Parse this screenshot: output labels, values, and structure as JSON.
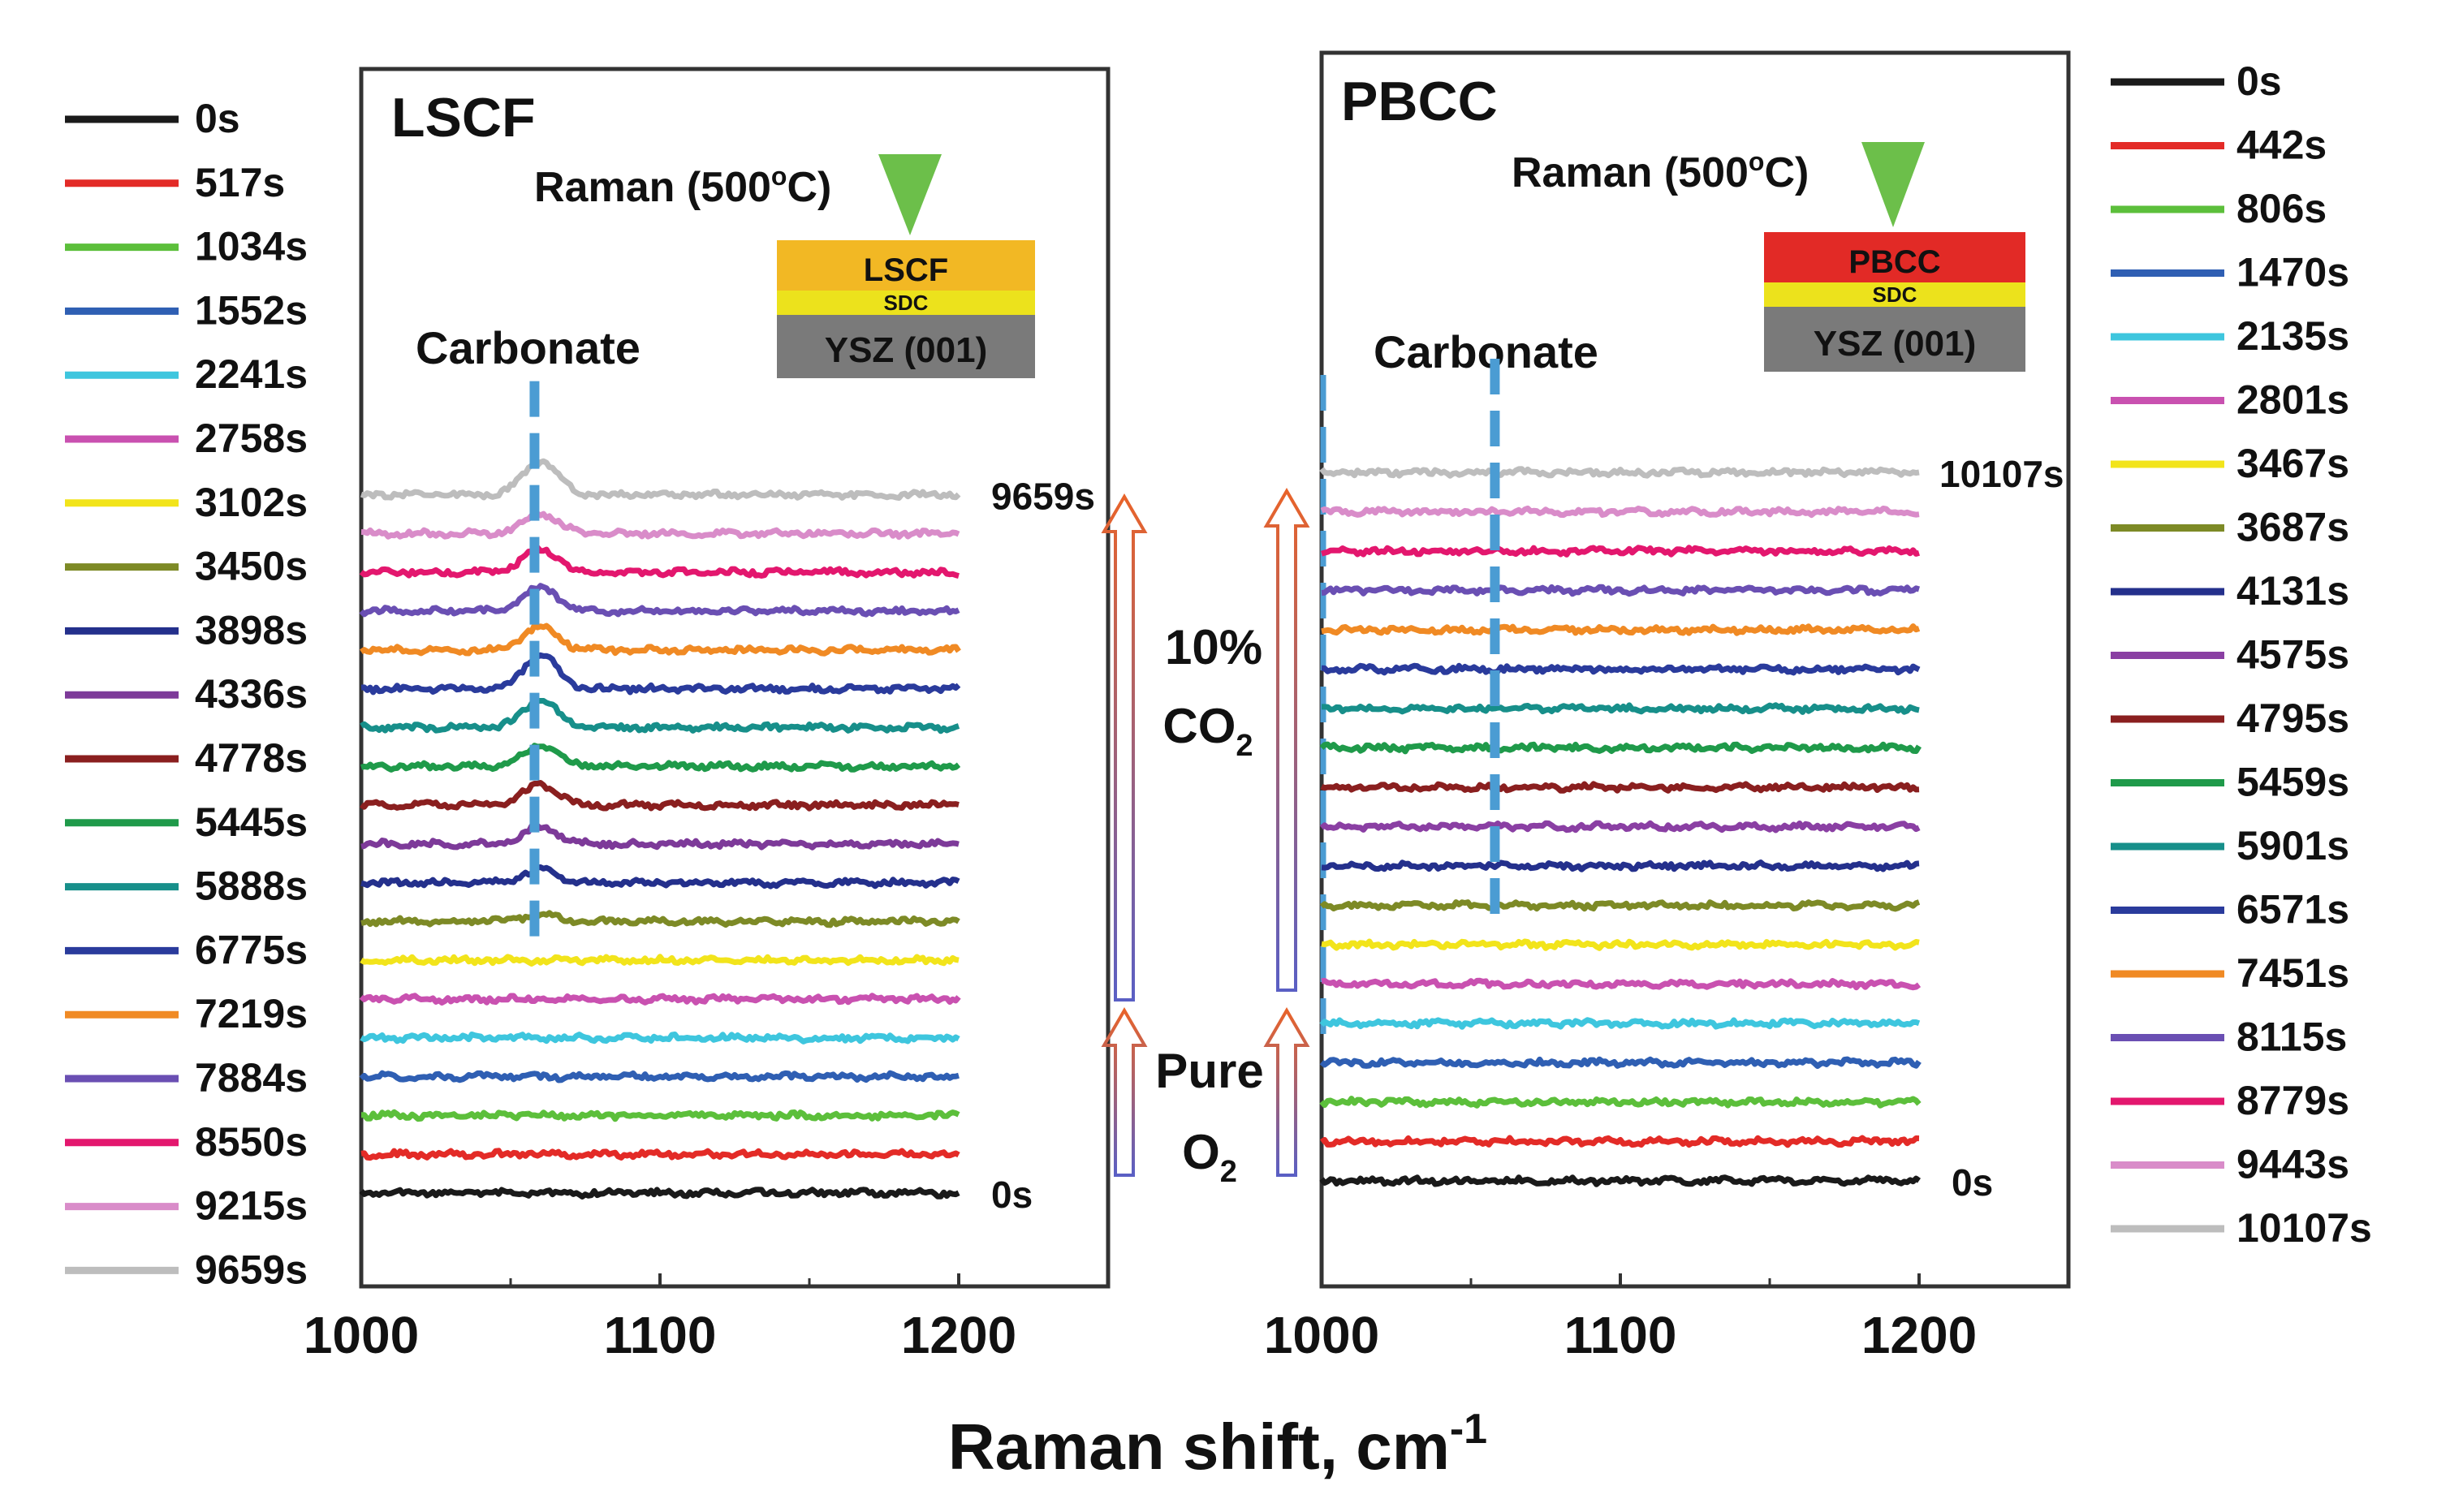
{
  "figure": {
    "xlabel": "Raman shift, cm",
    "xlabel_superscript": "-1"
  },
  "annotations": {
    "co2_line1": "10%",
    "co2_line2": "CO",
    "co2_subscript": "2",
    "o2_line1": "Pure",
    "o2_line2": "O",
    "o2_subscript": "2",
    "raman_prefix": "Raman (500",
    "raman_degree": "o",
    "raman_suffix": "C)",
    "carbonate": "Carbonate"
  },
  "colors": {
    "carbonate_marker": "#4b9cd3",
    "arrow_top": "#e8632a",
    "arrow_bottom": "#5a5fc4",
    "beam": "#6cbf4a",
    "sdc": "#ece21c",
    "ysz": "#7a7a7a",
    "lscf_layer": "#f2b824",
    "pbcc_layer": "#e22a26"
  },
  "chart_data": [
    {
      "type": "line",
      "title": "LSCF",
      "xlabel": "Raman shift, cm-1",
      "ylabel": "",
      "xlim": [
        1000,
        1250
      ],
      "xticks": [
        1000,
        1100,
        1200
      ],
      "carbonate_label": "Carbonate",
      "carbonate_position": 1058,
      "first_label": "0s",
      "last_label": "9659s",
      "stack_layers": {
        "top": "LSCF",
        "middle": "SDC",
        "bottom": "YSZ (001)"
      },
      "series": [
        {
          "name": "0s",
          "color": "#1a1a1a",
          "peak": 0,
          "offset": 0
        },
        {
          "name": "517s",
          "color": "#e32b27",
          "peak": 0,
          "offset": 1
        },
        {
          "name": "1034s",
          "color": "#5cbf3b",
          "peak": 0,
          "offset": 2
        },
        {
          "name": "1552s",
          "color": "#2f5fb3",
          "peak": 0,
          "offset": 3
        },
        {
          "name": "2241s",
          "color": "#3ec6de",
          "peak": 0,
          "offset": 4
        },
        {
          "name": "2758s",
          "color": "#c951b0",
          "peak": 0,
          "offset": 5
        },
        {
          "name": "3102s",
          "color": "#f2e41b",
          "peak": 0,
          "offset": 6
        },
        {
          "name": "3450s",
          "color": "#7d8a26",
          "peak": 0.2,
          "offset": 7
        },
        {
          "name": "3898s",
          "color": "#24308c",
          "peak": 0.4,
          "offset": 8
        },
        {
          "name": "4336s",
          "color": "#7d3a99",
          "peak": 0.5,
          "offset": 9
        },
        {
          "name": "4778s",
          "color": "#8a1f1f",
          "peak": 0.6,
          "offset": 10
        },
        {
          "name": "5445s",
          "color": "#1f9a4a",
          "peak": 0.6,
          "offset": 11
        },
        {
          "name": "5888s",
          "color": "#178f8a",
          "peak": 0.8,
          "offset": 12
        },
        {
          "name": "6775s",
          "color": "#2a3b9c",
          "peak": 1.0,
          "offset": 13
        },
        {
          "name": "7219s",
          "color": "#f08a24",
          "peak": 0.7,
          "offset": 14
        },
        {
          "name": "7884s",
          "color": "#6a4fb3",
          "peak": 0.7,
          "offset": 15
        },
        {
          "name": "8550s",
          "color": "#e3176e",
          "peak": 0.7,
          "offset": 16
        },
        {
          "name": "9215s",
          "color": "#d98cc9",
          "peak": 0.6,
          "offset": 17
        },
        {
          "name": "9659s",
          "color": "#bdbdbd",
          "peak": 1.0,
          "offset": 18
        }
      ]
    },
    {
      "type": "line",
      "title": "PBCC",
      "xlabel": "Raman shift, cm-1",
      "ylabel": "",
      "xlim": [
        1000,
        1250
      ],
      "xticks": [
        1000,
        1100,
        1200
      ],
      "carbonate_label": "Carbonate",
      "carbonate_position": 1058,
      "first_label": "0s",
      "last_label": "10107s",
      "stack_layers": {
        "top": "PBCC",
        "middle": "SDC",
        "bottom": "YSZ (001)"
      },
      "series": [
        {
          "name": "0s",
          "color": "#1a1a1a",
          "peak": 0,
          "offset": 0
        },
        {
          "name": "442s",
          "color": "#e32b27",
          "peak": 0,
          "offset": 1
        },
        {
          "name": "806s",
          "color": "#5cbf3b",
          "peak": 0,
          "offset": 2
        },
        {
          "name": "1470s",
          "color": "#2f5fb3",
          "peak": 0,
          "offset": 3
        },
        {
          "name": "2135s",
          "color": "#3ec6de",
          "peak": 0,
          "offset": 4
        },
        {
          "name": "2801s",
          "color": "#c951b0",
          "peak": 0,
          "offset": 5
        },
        {
          "name": "3467s",
          "color": "#f2e41b",
          "peak": 0,
          "offset": 6
        },
        {
          "name": "3687s",
          "color": "#7d8a26",
          "peak": 0,
          "offset": 7
        },
        {
          "name": "4131s",
          "color": "#24308c",
          "peak": 0,
          "offset": 8
        },
        {
          "name": "4575s",
          "color": "#8a3fa3",
          "peak": 0,
          "offset": 9
        },
        {
          "name": "4795s",
          "color": "#8a1f1f",
          "peak": 0,
          "offset": 10
        },
        {
          "name": "5459s",
          "color": "#1f9a4a",
          "peak": 0,
          "offset": 11
        },
        {
          "name": "5901s",
          "color": "#178f8a",
          "peak": 0,
          "offset": 12
        },
        {
          "name": "6571s",
          "color": "#2a3b9c",
          "peak": 0,
          "offset": 13
        },
        {
          "name": "7451s",
          "color": "#f08a24",
          "peak": 0,
          "offset": 14
        },
        {
          "name": "8115s",
          "color": "#6a4fb3",
          "peak": 0,
          "offset": 15
        },
        {
          "name": "8779s",
          "color": "#e3176e",
          "peak": 0,
          "offset": 16
        },
        {
          "name": "9443s",
          "color": "#d98cc9",
          "peak": 0,
          "offset": 17
        },
        {
          "name": "10107s",
          "color": "#bdbdbd",
          "peak": 0,
          "offset": 18
        }
      ]
    }
  ]
}
